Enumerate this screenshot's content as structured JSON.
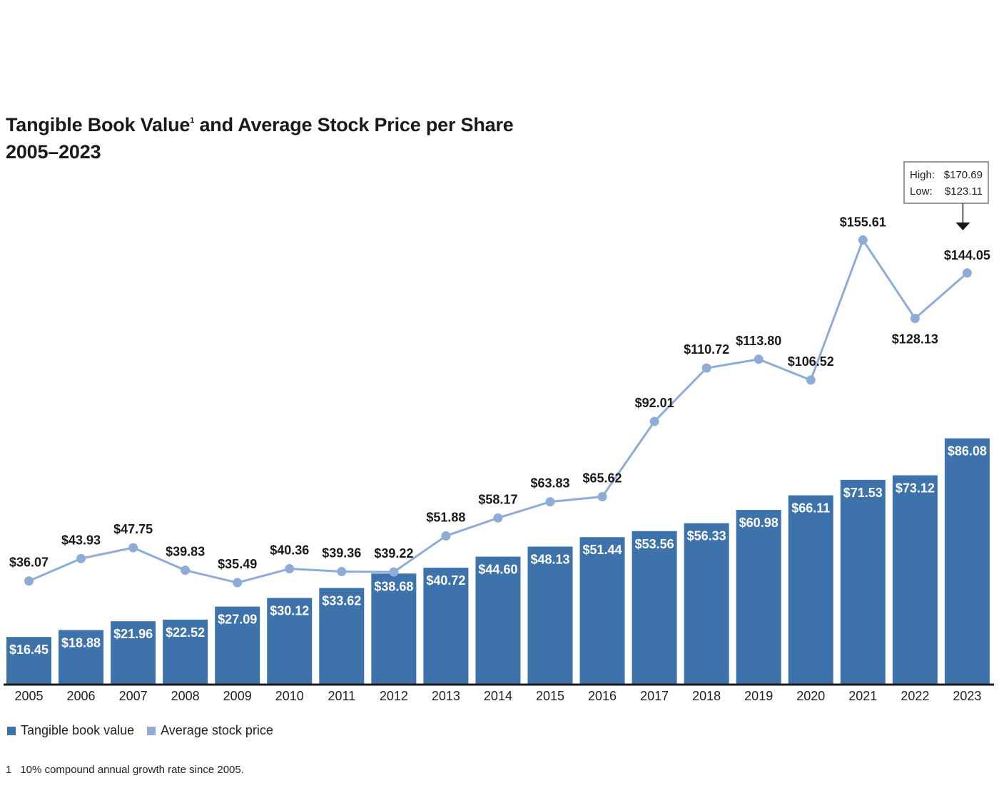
{
  "title": {
    "line1_main": "Tangible Book Value",
    "line1_sup": "1",
    "line1_rest": " and Average Stock Price per Share",
    "line2": "2005–2023"
  },
  "colors": {
    "bar": "#3d72aa",
    "line": "#8eacd6",
    "axis": "#1a1a1a"
  },
  "chart_data": {
    "type": "bar",
    "categories": [
      "2005",
      "2006",
      "2007",
      "2008",
      "2009",
      "2010",
      "2011",
      "2012",
      "2013",
      "2014",
      "2015",
      "2016",
      "2017",
      "2018",
      "2019",
      "2020",
      "2021",
      "2022",
      "2023"
    ],
    "series": [
      {
        "name": "Tangible book value",
        "type": "bar",
        "values": [
          16.45,
          18.88,
          21.96,
          22.52,
          27.09,
          30.12,
          33.62,
          38.68,
          40.72,
          44.6,
          48.13,
          51.44,
          53.56,
          56.33,
          60.98,
          66.11,
          71.53,
          73.12,
          86.08
        ],
        "labels": [
          "$16.45",
          "$18.88",
          "$21.96",
          "$22.52",
          "$27.09",
          "$30.12",
          "$33.62",
          "$38.68",
          "$40.72",
          "$44.60",
          "$48.13",
          "$51.44",
          "$53.56",
          "$56.33",
          "$60.98",
          "$66.11",
          "$71.53",
          "$73.12",
          "$86.08"
        ]
      },
      {
        "name": "Average stock price",
        "type": "line",
        "values": [
          36.07,
          43.93,
          47.75,
          39.83,
          35.49,
          40.36,
          39.36,
          39.22,
          51.88,
          58.17,
          63.83,
          65.62,
          92.01,
          110.72,
          113.8,
          106.52,
          155.61,
          128.13,
          144.05
        ],
        "labels": [
          "$36.07",
          "$43.93",
          "$47.75",
          "$39.83",
          "$35.49",
          "$40.36",
          "$39.36",
          "$39.22",
          "$51.88",
          "$58.17",
          "$63.83",
          "$65.62",
          "$92.01",
          "$110.72",
          "$113.80",
          "$106.52",
          "$155.61",
          "$128.13",
          "$144.05"
        ]
      }
    ],
    "annotation": {
      "category": "2023",
      "high_label": "High:",
      "high_value": "$170.69",
      "low_label": "Low:",
      "low_value": "$123.11"
    },
    "ylim": [
      0,
      170
    ],
    "grid": false,
    "legend_placement": "bottom-left"
  },
  "legend": {
    "bar_label": "Tangible book value",
    "line_label": "Average stock price"
  },
  "footnote": {
    "number": "1",
    "text": "10% compound annual growth rate since 2005."
  }
}
